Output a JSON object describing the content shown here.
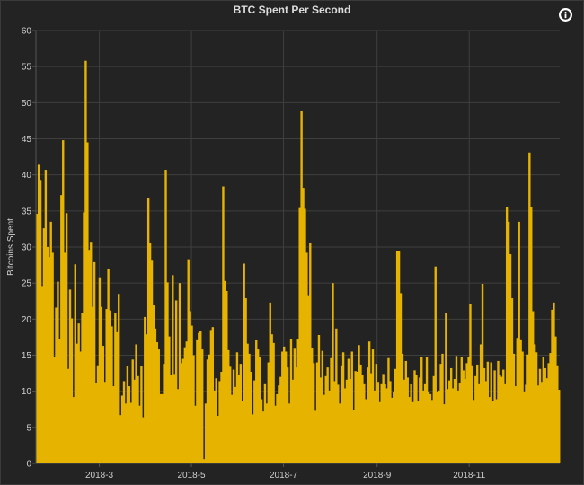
{
  "chart_data": {
    "type": "bar",
    "title": "BTC Spent Per Second",
    "xlabel": "",
    "ylabel": "Bitcoins Spent",
    "ylim": [
      0,
      60
    ],
    "yticks": [
      "0",
      "5",
      "10",
      "15",
      "20",
      "25",
      "30",
      "35",
      "40",
      "45",
      "50",
      "55",
      "60"
    ],
    "xticks": [
      "2018-3",
      "2018-5",
      "2018-7",
      "2018-9",
      "2018-11"
    ],
    "x_start": "2018-01-18",
    "x_end": "2018-12-31",
    "x_tick_dates": [
      "2018-03-01",
      "2018-05-01",
      "2018-07-01",
      "2018-09-01",
      "2018-11-01"
    ],
    "grid": true,
    "bar_color": "#e6b400",
    "series": [
      {
        "values": [
          34.6,
          41.4,
          39.3,
          24.6,
          32.6,
          40.7,
          30,
          28.6,
          33.5,
          29.2,
          14.8,
          21.6,
          25.2,
          17.3,
          37.2,
          44.8,
          29.2,
          34.7,
          13.1,
          24.1,
          20.1,
          9.2,
          27.6,
          16.6,
          19.4,
          15.5,
          20.8,
          34.8,
          55.8,
          44.5,
          29.6,
          30.6,
          21.7,
          27.9,
          11.2,
          13.6,
          25.8,
          21.7,
          16.3,
          11.3,
          21.4,
          26.9,
          21.2,
          19,
          10.7,
          20.8,
          18.2,
          23.5,
          6.7,
          9.4,
          11.4,
          8.3,
          13.5,
          10.7,
          8.4,
          14.4,
          11.6,
          16.5,
          12.1,
          8,
          13.5,
          6.4,
          20.3,
          17.9,
          36.8,
          30.5,
          28.1,
          21.9,
          18.7,
          16.8,
          15.8,
          9.6,
          9.6,
          13.8,
          40.7,
          25.1,
          17.6,
          12.3,
          26.1,
          12.4,
          22.6,
          10.3,
          25,
          13.9,
          14.5,
          16.1,
          16.9,
          28.3,
          21.1,
          19.1,
          15,
          8,
          17.2,
          18.1,
          18.3,
          15.8,
          0.6,
          8.3,
          14.4,
          15.1,
          18.5,
          18.9,
          10.1,
          11.8,
          6.6,
          11.4,
          12.7,
          38.4,
          25.3,
          23.9,
          15.7,
          13.4,
          9.5,
          13,
          10.6,
          15.4,
          12.3,
          13.8,
          8.6,
          27.7,
          22.9,
          16.6,
          15.2,
          12.7,
          6.8,
          11.5,
          17.1,
          15.8,
          14.7,
          8.9,
          7.2,
          11.1,
          8.3,
          14,
          22.3,
          17.9,
          16.7,
          8,
          9.6,
          10.8,
          12,
          15.5,
          16.2,
          15.5,
          13.3,
          8.3,
          17.3,
          11.6,
          15.9,
          13.3,
          17.3,
          35.4,
          48.8,
          38.2,
          35.3,
          29.2,
          23.2,
          30.5,
          16,
          13.9,
          7.3,
          14,
          17.8,
          11.9,
          15.6,
          9.5,
          12.1,
          13.3,
          10.1,
          14.6,
          25,
          11.4,
          18.7,
          10.9,
          8.3,
          13.6,
          15.4,
          10.4,
          11.6,
          14.5,
          11.7,
          15.5,
          7.4,
          12.8,
          12.7,
          16.4,
          13.7,
          12.3,
          11.1,
          8.9,
          13.3,
          16.9,
          12.5,
          15.8,
          10.1,
          13.8,
          11.3,
          8.5,
          11.1,
          12.4,
          11,
          10.4,
          14.6,
          11.4,
          9.1,
          9.9,
          13.1,
          29.5,
          29.5,
          23.6,
          15.2,
          11.6,
          14.2,
          11.9,
          9.2,
          11,
          8.5,
          12.9,
          12.3,
          8.6,
          11.9,
          14.8,
          10.1,
          11.1,
          14.8,
          9.9,
          9.6,
          8.8,
          12.1,
          27.3,
          9.9,
          10.1,
          13.8,
          15.2,
          8.2,
          20.9,
          10.3,
          11.5,
          13.2,
          10.4,
          11.7,
          14.9,
          10.1,
          11.2,
          14.8,
          12.9,
          11.7,
          13.9,
          14.8,
          22.1,
          13.6,
          8.8,
          12.1,
          13.7,
          11.1,
          16.5,
          24.9,
          13.2,
          11.4,
          14.1,
          9.2,
          14,
          8.7,
          12.9,
          8.9,
          14.2,
          12.2,
          12,
          13,
          11.1,
          35.6,
          33.5,
          29,
          22.9,
          15.2,
          10.7,
          17.4,
          33.5,
          17.2,
          15.5,
          9.9,
          10.9,
          15.1,
          43.1,
          35.6,
          21.1,
          16.5,
          15.4,
          10.8,
          13.1,
          11.3,
          14.7,
          13.2,
          11.8,
          13.9,
          15.3,
          21.3,
          22.3,
          17.6,
          13.6,
          10.2
        ]
      }
    ]
  }
}
